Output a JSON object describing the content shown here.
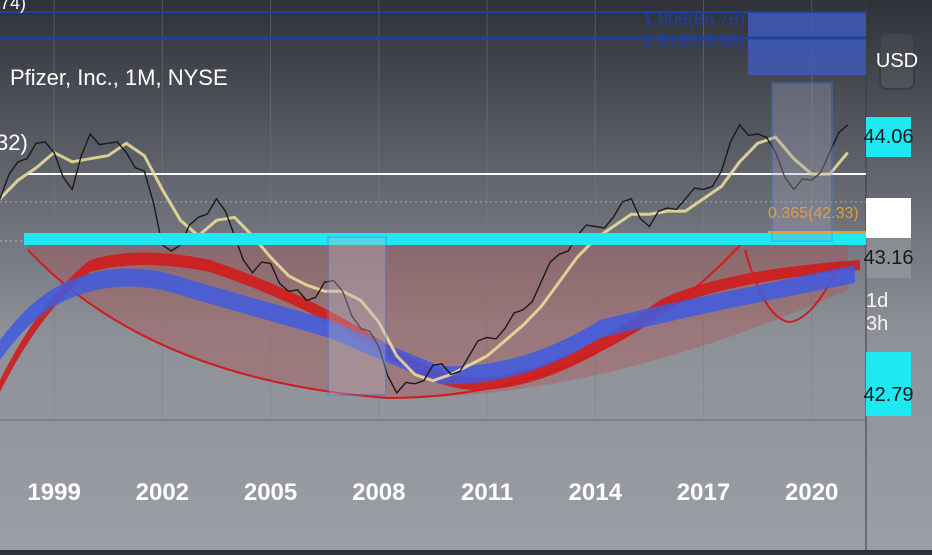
{
  "legend": {
    "symbol": "Pfizer, Inc., 1M, NYSE",
    "top_left_fragment": "74)",
    "second_fragment": "32)"
  },
  "currency_button": "USD",
  "price_axis": {
    "tag_upper": "44.06",
    "tag_last": "43.16",
    "countdown": "1d 3h",
    "tag_lower": "42.79"
  },
  "fib_labels": {
    "level_1809": "1.809(86.79)",
    "level_1618": "1.618(79.96)",
    "level_0365": "0.365(42.33)"
  },
  "colors": {
    "cyan_level": "#1ee8f2",
    "blue_band": "#3f5be0",
    "red_band": "#d11c1c",
    "fib_blue": "#1e3fa3",
    "fib_orange": "#e39d3a"
  },
  "chart_data": {
    "type": "line",
    "title": "Pfizer, Inc., 1M, NYSE",
    "x_tick_labels": [
      "1999",
      "2002",
      "2005",
      "2008",
      "2011",
      "2014",
      "2017",
      "2020"
    ],
    "price_series": {
      "name": "",
      "x": [
        1998.0,
        1998.5,
        1999.0,
        1999.5,
        2000.0,
        2000.5,
        2001.0,
        2001.5,
        2002.0,
        2002.5,
        2003.0,
        2003.5,
        2004.0,
        2004.5,
        2005.0,
        2005.5,
        2006.0,
        2006.5,
        2007.0,
        2007.5,
        2008.0,
        2008.5,
        2009.0,
        2009.5,
        2010.0,
        2010.5,
        2011.0,
        2011.5,
        2012.0,
        2012.5,
        2013.0,
        2013.5,
        2014.0,
        2014.5,
        2015.0,
        2015.5,
        2016.0,
        2016.5,
        2017.0,
        2017.5,
        2018.0,
        2018.5,
        2019.0,
        2019.5,
        2020.0,
        2020.5,
        2021.0,
        2021.5
      ],
      "y": [
        35,
        39,
        41,
        40,
        36,
        42,
        41,
        40,
        38,
        30,
        30,
        33,
        35,
        31,
        27,
        28,
        25,
        24,
        26,
        25,
        21,
        19,
        14,
        15,
        17,
        16,
        18,
        20,
        21,
        23,
        26,
        29,
        31,
        32,
        33,
        35,
        32,
        34,
        35,
        36,
        38,
        43,
        42,
        40,
        36,
        37,
        40,
        43
      ]
    },
    "annotations": [
      "1.809(86.79)",
      "1.618(79.96)",
      "0.365(42.33)"
    ]
  }
}
